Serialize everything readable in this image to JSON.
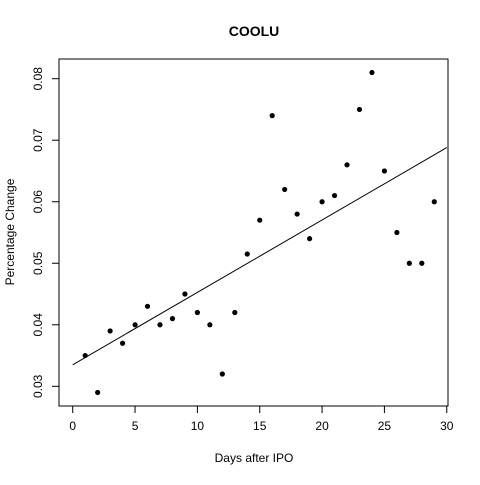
{
  "chart_data": {
    "type": "scatter",
    "title": "COOLU",
    "xlabel": "Days after IPO",
    "ylabel": "Percentage Change",
    "xlim": [
      0,
      30
    ],
    "ylim": [
      0.03,
      0.08
    ],
    "grid": false,
    "x_ticks": [
      0,
      5,
      10,
      15,
      20,
      25,
      30
    ],
    "x_tick_labels": [
      "0",
      "5",
      "10",
      "15",
      "20",
      "25",
      "30"
    ],
    "y_ticks": [
      0.03,
      0.04,
      0.05,
      0.06,
      0.07,
      0.08
    ],
    "y_tick_labels": [
      "0.03",
      "0.04",
      "0.05",
      "0.06",
      "0.07",
      "0.08"
    ],
    "series": [
      {
        "points": [
          [
            1,
            0.035
          ],
          [
            2,
            0.029
          ],
          [
            3,
            0.039
          ],
          [
            4,
            0.037
          ],
          [
            5,
            0.04
          ],
          [
            6,
            0.043
          ],
          [
            7,
            0.04
          ],
          [
            8,
            0.041
          ],
          [
            9,
            0.045
          ],
          [
            10,
            0.042
          ],
          [
            11,
            0.04
          ],
          [
            12,
            0.032
          ],
          [
            13,
            0.042
          ],
          [
            14,
            0.0515
          ],
          [
            15,
            0.057
          ],
          [
            16,
            0.074
          ],
          [
            17,
            0.062
          ],
          [
            18,
            0.058
          ],
          [
            19,
            0.054
          ],
          [
            20,
            0.06
          ],
          [
            21,
            0.061
          ],
          [
            22,
            0.066
          ],
          [
            23,
            0.075
          ],
          [
            24,
            0.081
          ],
          [
            25,
            0.065
          ],
          [
            26,
            0.055
          ],
          [
            27,
            0.05
          ],
          [
            28,
            0.05
          ],
          [
            29,
            0.06
          ]
        ]
      }
    ],
    "fit_line": {
      "from": [
        0,
        0.0335
      ],
      "to": [
        30,
        0.0688
      ]
    },
    "colors": {
      "points": "#000000",
      "line": "#000000",
      "axes": "#000000"
    }
  }
}
